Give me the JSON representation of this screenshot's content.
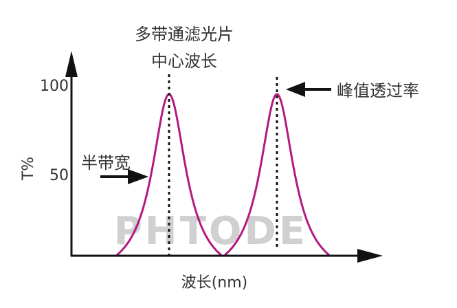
{
  "title_line1": "多带通滤光片",
  "title_line2": "中心波长",
  "peak_label": "峰值透过率",
  "fwhm_label": "半带宽",
  "y_axis_label": "T%",
  "x_axis_label": "波长(nm)",
  "y_ticks": [
    "100",
    "50"
  ],
  "watermark": "PHTODE",
  "colors": {
    "curve": "#b3197f",
    "axis": "#111111",
    "watermark": "#d0d0d0"
  }
}
